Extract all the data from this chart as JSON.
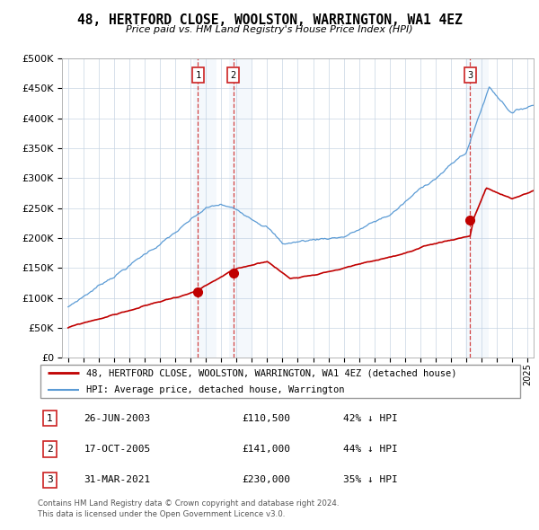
{
  "title": "48, HERTFORD CLOSE, WOOLSTON, WARRINGTON, WA1 4EZ",
  "subtitle": "Price paid vs. HM Land Registry's House Price Index (HPI)",
  "hpi_color": "#5b9bd5",
  "price_color": "#c00000",
  "background_color": "#ffffff",
  "grid_color": "#c8d4e3",
  "transactions": [
    {
      "label": "1",
      "date_x": 2003.48,
      "price": 110500,
      "date_str": "26-JUN-2003",
      "pct": "42%"
    },
    {
      "label": "2",
      "date_x": 2005.79,
      "price": 141000,
      "date_str": "17-OCT-2005",
      "pct": "44%"
    },
    {
      "label": "3",
      "date_x": 2021.25,
      "price": 230000,
      "date_str": "31-MAR-2021",
      "pct": "35%"
    }
  ],
  "ylim": [
    0,
    500000
  ],
  "yticks": [
    0,
    50000,
    100000,
    150000,
    200000,
    250000,
    300000,
    350000,
    400000,
    450000,
    500000
  ],
  "xlim_start": 1994.6,
  "xlim_end": 2025.4,
  "legend_line1": "48, HERTFORD CLOSE, WOOLSTON, WARRINGTON, WA1 4EZ (detached house)",
  "legend_line2": "HPI: Average price, detached house, Warrington",
  "footer1": "Contains HM Land Registry data © Crown copyright and database right 2024.",
  "footer2": "This data is licensed under the Open Government Licence v3.0.",
  "table_rows": [
    [
      "1",
      "26-JUN-2003",
      "£110,500",
      "42% ↓ HPI"
    ],
    [
      "2",
      "17-OCT-2005",
      "£141,000",
      "44% ↓ HPI"
    ],
    [
      "3",
      "31-MAR-2021",
      "£230,000",
      "35% ↓ HPI"
    ]
  ]
}
